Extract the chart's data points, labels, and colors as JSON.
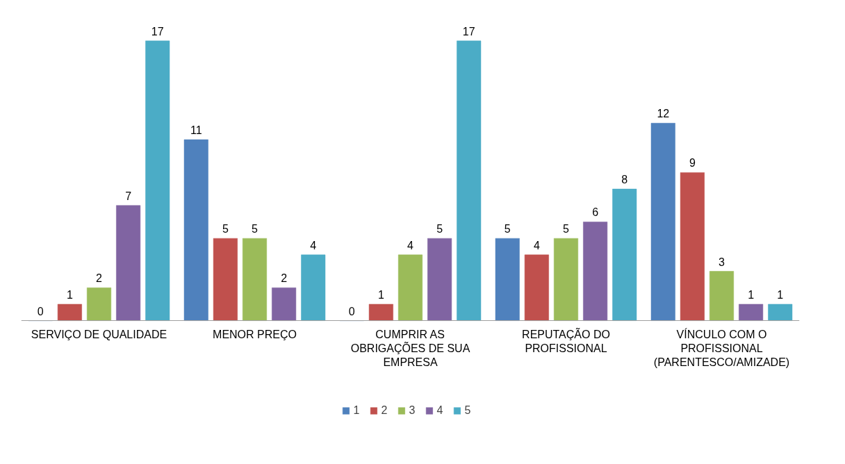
{
  "chart_data": {
    "type": "bar",
    "categories": [
      "SERVIÇO DE QUALIDADE",
      "MENOR PREÇO",
      "CUMPRIR AS OBRIGAÇÕES DE SUA EMPRESA",
      "REPUTAÇÃO DO PROFISSIONAL",
      "VÍNCULO COM O PROFISSIONAL (PARENTESCO/AMIZADE)"
    ],
    "series": [
      {
        "name": "1",
        "color": "#4f81bd",
        "values": [
          0,
          11,
          0,
          5,
          12
        ]
      },
      {
        "name": "2",
        "color": "#c0504d",
        "values": [
          1,
          5,
          1,
          4,
          9
        ]
      },
      {
        "name": "3",
        "color": "#9bbb59",
        "values": [
          2,
          5,
          4,
          5,
          3
        ]
      },
      {
        "name": "4",
        "color": "#8064a2",
        "values": [
          7,
          2,
          5,
          6,
          1
        ]
      },
      {
        "name": "5",
        "color": "#4bacc6",
        "values": [
          17,
          4,
          17,
          8,
          1
        ]
      }
    ],
    "data_labels": true,
    "legend": "bottom",
    "grid": false,
    "tick_labels": "x"
  }
}
